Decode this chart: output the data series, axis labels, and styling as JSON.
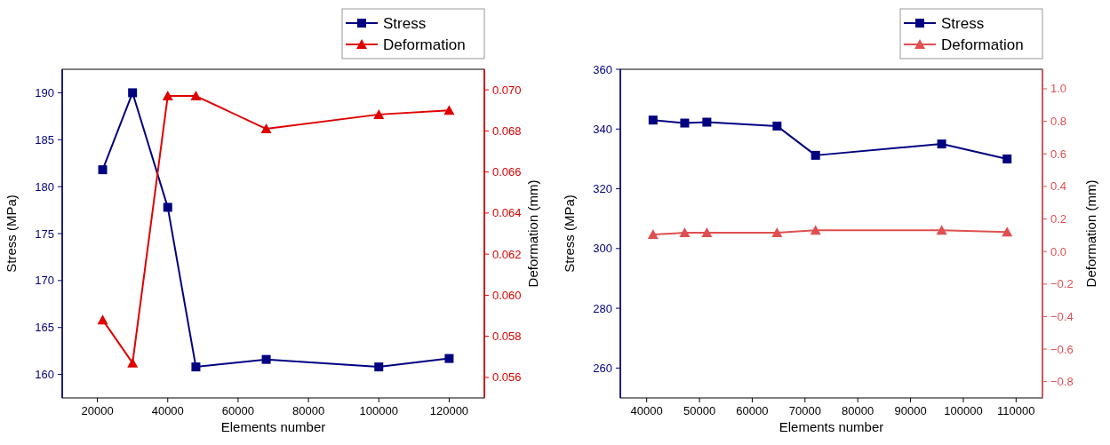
{
  "chart_data": [
    {
      "type": "line",
      "xlabel": "Elements number",
      "ylabel": "Stress (MPa)",
      "y2label": "Deformation (mm)",
      "xlim": [
        10000,
        130000
      ],
      "xticks": [
        20000,
        40000,
        60000,
        80000,
        100000,
        120000
      ],
      "ylim": [
        157.5,
        192.5
      ],
      "yticks": [
        160,
        165,
        170,
        175,
        180,
        185,
        190
      ],
      "y2lim": [
        0.055,
        0.071
      ],
      "y2ticks": [
        {
          "value": 0.056,
          "label": "0.056"
        },
        {
          "value": 0.058,
          "label": "0.058"
        },
        {
          "value": 0.06,
          "label": "0.060"
        },
        {
          "value": 0.062,
          "label": "0.062"
        },
        {
          "value": 0.064,
          "label": "0.064"
        },
        {
          "value": 0.066,
          "label": "0.066"
        },
        {
          "value": 0.068,
          "label": "0.068"
        },
        {
          "value": 0.07,
          "label": "0.070"
        }
      ],
      "legend": "top right",
      "grid": false,
      "series": [
        {
          "name": "Stress",
          "color": "#000080",
          "marker": "square",
          "x": [
            21500,
            30000,
            40000,
            48000,
            68000,
            100000,
            120000
          ],
          "values": [
            181.8,
            190,
            177.8,
            160.8,
            161.6,
            160.8,
            161.7
          ]
        },
        {
          "name": "Deformation",
          "color": "#e00000",
          "marker": "triangle",
          "axis": "y2",
          "x": [
            21500,
            30000,
            40000,
            48000,
            68000,
            100000,
            120000
          ],
          "values": [
            0.0588,
            0.0567,
            0.0697,
            0.0697,
            0.0681,
            0.0688,
            0.069
          ]
        }
      ]
    },
    {
      "type": "line",
      "xlabel": "Elements number",
      "ylabel": "Stress (MPa)",
      "y2label": "Deformation (mm)",
      "xlim": [
        35000,
        115000
      ],
      "xticks": [
        40000,
        50000,
        60000,
        70000,
        80000,
        90000,
        100000,
        110000
      ],
      "ylim": [
        250,
        360
      ],
      "yticks": [
        260,
        280,
        300,
        320,
        340,
        360
      ],
      "y2lim": [
        -0.9,
        1.12
      ],
      "y2ticks": [
        {
          "value": -0.8,
          "label": "−0.8"
        },
        {
          "value": -0.6,
          "label": "−0.6"
        },
        {
          "value": -0.4,
          "label": "−0.4"
        },
        {
          "value": -0.2,
          "label": "−0.2"
        },
        {
          "value": 0,
          "label": "0.0"
        },
        {
          "value": 0.2,
          "label": "0.2"
        },
        {
          "value": 0.4,
          "label": "0.4"
        },
        {
          "value": 0.6,
          "label": "0.6"
        },
        {
          "value": 0.8,
          "label": "0.8"
        },
        {
          "value": 1,
          "label": "1.0"
        }
      ],
      "legend": "top right",
      "grid": false,
      "series": [
        {
          "name": "Stress",
          "color": "#000080",
          "marker": "square",
          "x": [
            41200,
            47200,
            51400,
            64700,
            72000,
            95900,
            108300
          ],
          "values": [
            343,
            342,
            342.3,
            341,
            331.2,
            335,
            330
          ]
        },
        {
          "name": "Deformation",
          "color": "#e05050",
          "marker": "triangle",
          "axis": "y2",
          "x": [
            41200,
            47200,
            51400,
            64700,
            72000,
            95900,
            108300
          ],
          "values": [
            0.105,
            0.115,
            0.115,
            0.115,
            0.13,
            0.13,
            0.12
          ]
        }
      ]
    }
  ]
}
